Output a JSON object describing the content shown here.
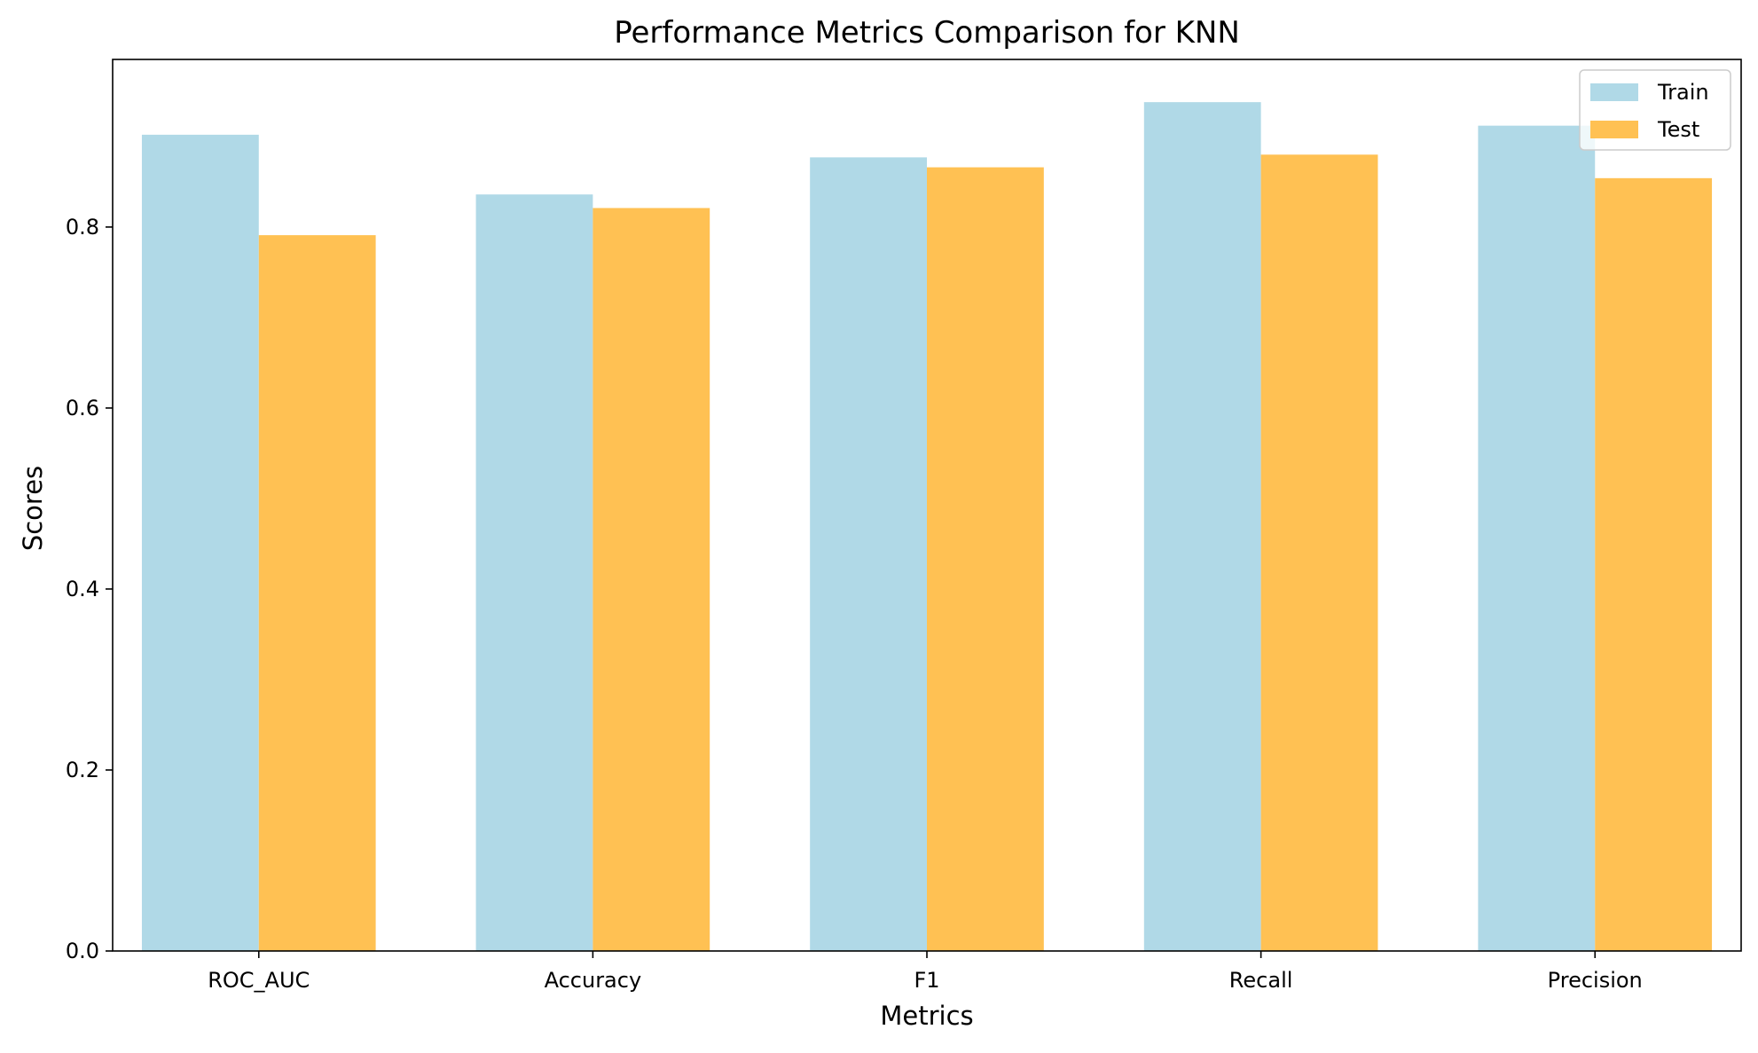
{
  "chart_data": {
    "type": "bar",
    "title": "Performance Metrics Comparison for KNN",
    "xlabel": "Metrics",
    "ylabel": "Scores",
    "categories": [
      "ROC_AUC",
      "Accuracy",
      "F1",
      "Recall",
      "Precision"
    ],
    "series": [
      {
        "name": "Train",
        "color": "#add8e6",
        "values": [
          0.902,
          0.836,
          0.877,
          0.938,
          0.912
        ]
      },
      {
        "name": "Test",
        "color": "#ffbf4d",
        "values": [
          0.791,
          0.821,
          0.866,
          0.88,
          0.854
        ]
      }
    ],
    "ylim": [
      0,
      0.9852
    ],
    "yticks": [
      0.0,
      0.2,
      0.4,
      0.6,
      0.8
    ],
    "ytick_labels": [
      "0.0",
      "0.2",
      "0.4",
      "0.6",
      "0.8"
    ],
    "grid": false,
    "legend_position": "top-right"
  }
}
